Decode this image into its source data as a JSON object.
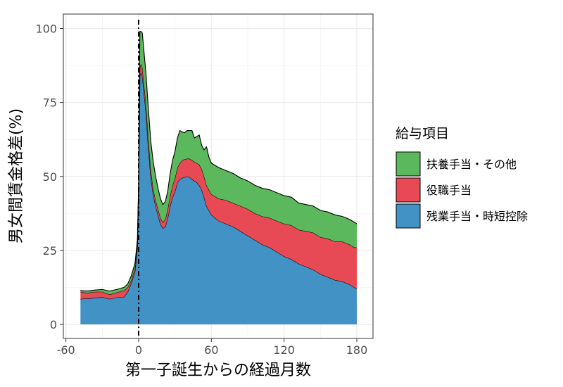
{
  "chart_data": {
    "type": "area",
    "stacked": true,
    "xlabel": "第一子誕生からの経過月数",
    "ylabel": "男女間賃金格差(%)",
    "xlim": [
      -60,
      180
    ],
    "ylim": [
      0,
      100
    ],
    "x_ticks": [
      -60,
      0,
      60,
      120,
      180
    ],
    "y_ticks": [
      0,
      25,
      50,
      75,
      100
    ],
    "grid": true,
    "vertical_reference_line_x": 0,
    "legend_title": "給与項目",
    "legend_position": "right",
    "x": [
      -48,
      -45,
      -42,
      -36,
      -30,
      -24,
      -18,
      -12,
      -9,
      -6,
      -3,
      -2,
      -1,
      0,
      1,
      2,
      3,
      4,
      6,
      8,
      10,
      12,
      14,
      16,
      18,
      20,
      22,
      24,
      26,
      28,
      30,
      32,
      34,
      36,
      38,
      40,
      42,
      44,
      46,
      48,
      50,
      52,
      54,
      56,
      58,
      60,
      66,
      72,
      78,
      84,
      90,
      96,
      102,
      108,
      114,
      120,
      126,
      132,
      138,
      144,
      150,
      156,
      162,
      168,
      174,
      178,
      180
    ],
    "series": [
      {
        "name": "残業手当・時短控除",
        "color": "#4292c6",
        "values": [
          8.5,
          8.8,
          8.7,
          9.0,
          9.2,
          8.6,
          9.1,
          9.3,
          11.0,
          14.0,
          18.0,
          22.0,
          26.0,
          45.0,
          84.0,
          85.0,
          84.0,
          80.0,
          72.0,
          60.0,
          50.0,
          44.0,
          40.0,
          37.0,
          34.0,
          32.5,
          33.0,
          36.0,
          40.0,
          43.0,
          45.0,
          48.0,
          49.0,
          49.5,
          49.8,
          50.0,
          49.8,
          49.0,
          48.5,
          48.0,
          47.0,
          45.5,
          43.0,
          40.0,
          38.5,
          37.0,
          35.0,
          34.0,
          33.0,
          31.5,
          30.0,
          28.5,
          27.0,
          26.0,
          24.5,
          23.0,
          22.0,
          20.5,
          19.5,
          18.5,
          17.0,
          16.0,
          15.0,
          14.5,
          13.5,
          12.5,
          12.0
        ]
      },
      {
        "name": "役職手当",
        "color": "#e84a55",
        "values": [
          2.5,
          2.0,
          2.0,
          2.0,
          1.8,
          1.5,
          1.7,
          2.2,
          1.5,
          1.0,
          1.2,
          1.2,
          1.3,
          1.5,
          3.0,
          3.0,
          3.0,
          3.0,
          3.0,
          3.0,
          2.5,
          2.0,
          2.0,
          2.0,
          2.0,
          2.0,
          2.5,
          3.0,
          3.5,
          4.0,
          4.5,
          5.0,
          5.5,
          6.0,
          6.0,
          6.0,
          6.2,
          6.5,
          6.5,
          6.5,
          7.0,
          7.0,
          7.0,
          7.0,
          7.0,
          7.0,
          7.5,
          8.0,
          8.0,
          8.5,
          9.0,
          9.0,
          9.5,
          10.0,
          10.5,
          11.0,
          11.5,
          11.5,
          12.0,
          12.5,
          12.5,
          13.0,
          13.0,
          13.5,
          13.5,
          13.5,
          14.0
        ]
      },
      {
        "name": "扶養手当・その他",
        "color": "#5cb85c",
        "values": [
          0.5,
          0.5,
          0.6,
          0.6,
          0.8,
          1.2,
          1.0,
          1.0,
          1.2,
          1.5,
          1.5,
          1.5,
          1.5,
          2.0,
          12.0,
          11.0,
          11.5,
          11.0,
          10.0,
          10.0,
          9.5,
          9.0,
          8.0,
          7.0,
          6.5,
          6.0,
          6.0,
          6.0,
          7.5,
          8.5,
          9.0,
          10.0,
          11.0,
          9.5,
          9.0,
          9.5,
          9.5,
          10.0,
          8.0,
          9.0,
          10.0,
          8.0,
          9.0,
          13.0,
          11.0,
          10.5,
          10.5,
          10.0,
          10.0,
          9.5,
          9.5,
          9.5,
          9.5,
          9.5,
          9.5,
          9.5,
          9.5,
          9.0,
          9.0,
          9.0,
          9.0,
          9.0,
          9.0,
          8.5,
          8.5,
          8.5,
          8.0
        ]
      }
    ]
  }
}
